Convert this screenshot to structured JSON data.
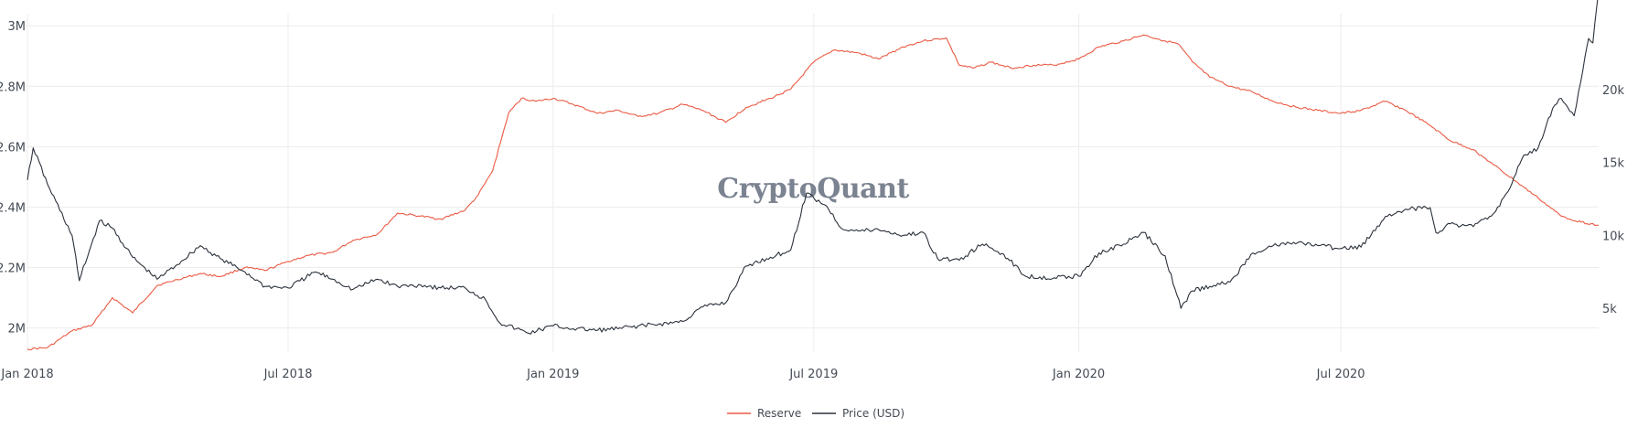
{
  "watermark": "CryptoQuant",
  "chart_data": {
    "type": "line",
    "x_ticks": [
      "Jan 2018",
      "Jul 2018",
      "Jan 2019",
      "Jul 2019",
      "Jan 2020",
      "Jul 2020"
    ],
    "y_left": {
      "ticks": [
        2000000,
        2200000,
        2400000,
        2600000,
        2800000,
        3000000
      ],
      "tick_labels": [
        "2M",
        "2.2M",
        "2.4M",
        "2.6M",
        "2.8M",
        "3M"
      ],
      "range": [
        1920000,
        3040000
      ]
    },
    "y_right": {
      "ticks": [
        5000,
        10000,
        15000,
        20000
      ],
      "tick_labels": [
        "5k",
        "10k",
        "15k",
        "20k"
      ],
      "range": [
        2000,
        25200
      ]
    },
    "x_range": [
      "2018-01-01",
      "2020-12-27"
    ],
    "grid": true,
    "legend_position": "bottom-center",
    "series": [
      {
        "name": "Reserve",
        "color": "#ea5a43",
        "axis": "left",
        "points": [
          [
            "2018-01-01",
            1930000
          ],
          [
            "2018-01-15",
            1935000
          ],
          [
            "2018-02-01",
            1990000
          ],
          [
            "2018-02-15",
            2010000
          ],
          [
            "2018-03-01",
            2100000
          ],
          [
            "2018-03-15",
            2050000
          ],
          [
            "2018-04-01",
            2140000
          ],
          [
            "2018-04-15",
            2160000
          ],
          [
            "2018-05-01",
            2180000
          ],
          [
            "2018-05-15",
            2170000
          ],
          [
            "2018-06-01",
            2200000
          ],
          [
            "2018-06-15",
            2190000
          ],
          [
            "2018-07-01",
            2220000
          ],
          [
            "2018-07-15",
            2240000
          ],
          [
            "2018-08-01",
            2250000
          ],
          [
            "2018-08-15",
            2290000
          ],
          [
            "2018-09-01",
            2310000
          ],
          [
            "2018-09-15",
            2380000
          ],
          [
            "2018-10-01",
            2370000
          ],
          [
            "2018-10-15",
            2360000
          ],
          [
            "2018-11-01",
            2390000
          ],
          [
            "2018-11-10",
            2440000
          ],
          [
            "2018-11-20",
            2520000
          ],
          [
            "2018-12-01",
            2710000
          ],
          [
            "2018-12-10",
            2760000
          ],
          [
            "2018-12-20",
            2750000
          ],
          [
            "2019-01-01",
            2760000
          ],
          [
            "2019-01-15",
            2740000
          ],
          [
            "2019-02-01",
            2710000
          ],
          [
            "2019-02-15",
            2720000
          ],
          [
            "2019-03-01",
            2700000
          ],
          [
            "2019-03-15",
            2710000
          ],
          [
            "2019-04-01",
            2740000
          ],
          [
            "2019-04-15",
            2720000
          ],
          [
            "2019-05-01",
            2680000
          ],
          [
            "2019-05-15",
            2730000
          ],
          [
            "2019-06-01",
            2760000
          ],
          [
            "2019-06-15",
            2790000
          ],
          [
            "2019-07-01",
            2880000
          ],
          [
            "2019-07-15",
            2920000
          ],
          [
            "2019-08-01",
            2910000
          ],
          [
            "2019-08-15",
            2890000
          ],
          [
            "2019-09-01",
            2930000
          ],
          [
            "2019-09-15",
            2950000
          ],
          [
            "2019-10-01",
            2960000
          ],
          [
            "2019-10-10",
            2870000
          ],
          [
            "2019-10-20",
            2860000
          ],
          [
            "2019-11-01",
            2880000
          ],
          [
            "2019-11-15",
            2860000
          ],
          [
            "2019-12-01",
            2870000
          ],
          [
            "2019-12-15",
            2870000
          ],
          [
            "2020-01-01",
            2890000
          ],
          [
            "2020-01-15",
            2930000
          ],
          [
            "2020-02-01",
            2950000
          ],
          [
            "2020-02-15",
            2970000
          ],
          [
            "2020-03-01",
            2950000
          ],
          [
            "2020-03-10",
            2940000
          ],
          [
            "2020-03-20",
            2880000
          ],
          [
            "2020-04-01",
            2830000
          ],
          [
            "2020-04-15",
            2800000
          ],
          [
            "2020-05-01",
            2780000
          ],
          [
            "2020-05-15",
            2750000
          ],
          [
            "2020-06-01",
            2730000
          ],
          [
            "2020-06-15",
            2720000
          ],
          [
            "2020-07-01",
            2710000
          ],
          [
            "2020-07-15",
            2720000
          ],
          [
            "2020-08-01",
            2750000
          ],
          [
            "2020-08-15",
            2720000
          ],
          [
            "2020-09-01",
            2670000
          ],
          [
            "2020-09-15",
            2620000
          ],
          [
            "2020-10-01",
            2590000
          ],
          [
            "2020-10-15",
            2540000
          ],
          [
            "2020-11-01",
            2480000
          ],
          [
            "2020-11-15",
            2430000
          ],
          [
            "2020-12-01",
            2370000
          ],
          [
            "2020-12-15",
            2350000
          ],
          [
            "2020-12-27",
            2340000
          ]
        ]
      },
      {
        "name": "Price (USD)",
        "color": "#2b313b",
        "axis": "right",
        "points": [
          [
            "2018-01-01",
            13800
          ],
          [
            "2018-01-05",
            16000
          ],
          [
            "2018-01-15",
            13500
          ],
          [
            "2018-02-01",
            10000
          ],
          [
            "2018-02-06",
            6900
          ],
          [
            "2018-02-20",
            11000
          ],
          [
            "2018-03-01",
            10500
          ],
          [
            "2018-03-15",
            8500
          ],
          [
            "2018-04-01",
            7000
          ],
          [
            "2018-04-15",
            8000
          ],
          [
            "2018-05-01",
            9300
          ],
          [
            "2018-05-15",
            8400
          ],
          [
            "2018-06-01",
            7500
          ],
          [
            "2018-06-15",
            6500
          ],
          [
            "2018-07-01",
            6400
          ],
          [
            "2018-07-20",
            7500
          ],
          [
            "2018-08-01",
            7000
          ],
          [
            "2018-08-15",
            6300
          ],
          [
            "2018-09-01",
            7000
          ],
          [
            "2018-09-15",
            6500
          ],
          [
            "2018-10-01",
            6600
          ],
          [
            "2018-10-15",
            6400
          ],
          [
            "2018-11-01",
            6400
          ],
          [
            "2018-11-15",
            5600
          ],
          [
            "2018-11-25",
            4000
          ],
          [
            "2018-12-15",
            3300
          ],
          [
            "2019-01-01",
            3800
          ],
          [
            "2019-01-15",
            3600
          ],
          [
            "2019-02-01",
            3500
          ],
          [
            "2019-02-15",
            3600
          ],
          [
            "2019-03-01",
            3800
          ],
          [
            "2019-03-15",
            3900
          ],
          [
            "2019-04-01",
            4100
          ],
          [
            "2019-04-15",
            5100
          ],
          [
            "2019-05-01",
            5400
          ],
          [
            "2019-05-15",
            7900
          ],
          [
            "2019-06-01",
            8500
          ],
          [
            "2019-06-15",
            9000
          ],
          [
            "2019-06-26",
            12900
          ],
          [
            "2019-07-10",
            12000
          ],
          [
            "2019-07-20",
            10500
          ],
          [
            "2019-08-01",
            10300
          ],
          [
            "2019-08-15",
            10400
          ],
          [
            "2019-09-01",
            10000
          ],
          [
            "2019-09-15",
            10200
          ],
          [
            "2019-09-25",
            8400
          ],
          [
            "2019-10-10",
            8300
          ],
          [
            "2019-10-26",
            9400
          ],
          [
            "2019-11-10",
            8700
          ],
          [
            "2019-11-25",
            7200
          ],
          [
            "2019-12-15",
            7100
          ],
          [
            "2020-01-01",
            7200
          ],
          [
            "2020-01-15",
            8800
          ],
          [
            "2020-02-01",
            9400
          ],
          [
            "2020-02-15",
            10200
          ],
          [
            "2020-03-01",
            8600
          ],
          [
            "2020-03-12",
            5000
          ],
          [
            "2020-03-20",
            6200
          ],
          [
            "2020-04-01",
            6500
          ],
          [
            "2020-04-15",
            6800
          ],
          [
            "2020-05-01",
            8800
          ],
          [
            "2020-05-15",
            9300
          ],
          [
            "2020-06-01",
            9500
          ],
          [
            "2020-06-15",
            9300
          ],
          [
            "2020-07-01",
            9100
          ],
          [
            "2020-07-15",
            9200
          ],
          [
            "2020-08-01",
            11300
          ],
          [
            "2020-08-15",
            11800
          ],
          [
            "2020-09-01",
            11900
          ],
          [
            "2020-09-05",
            10200
          ],
          [
            "2020-09-15",
            10800
          ],
          [
            "2020-10-01",
            10600
          ],
          [
            "2020-10-15",
            11500
          ],
          [
            "2020-10-25",
            13000
          ],
          [
            "2020-11-05",
            15500
          ],
          [
            "2020-11-15",
            16000
          ],
          [
            "2020-11-25",
            18700
          ],
          [
            "2020-12-01",
            19400
          ],
          [
            "2020-12-10",
            18200
          ],
          [
            "2020-12-16",
            21300
          ],
          [
            "2020-12-20",
            23500
          ],
          [
            "2020-12-23",
            23200
          ],
          [
            "2020-12-27",
            26800
          ]
        ]
      }
    ]
  }
}
